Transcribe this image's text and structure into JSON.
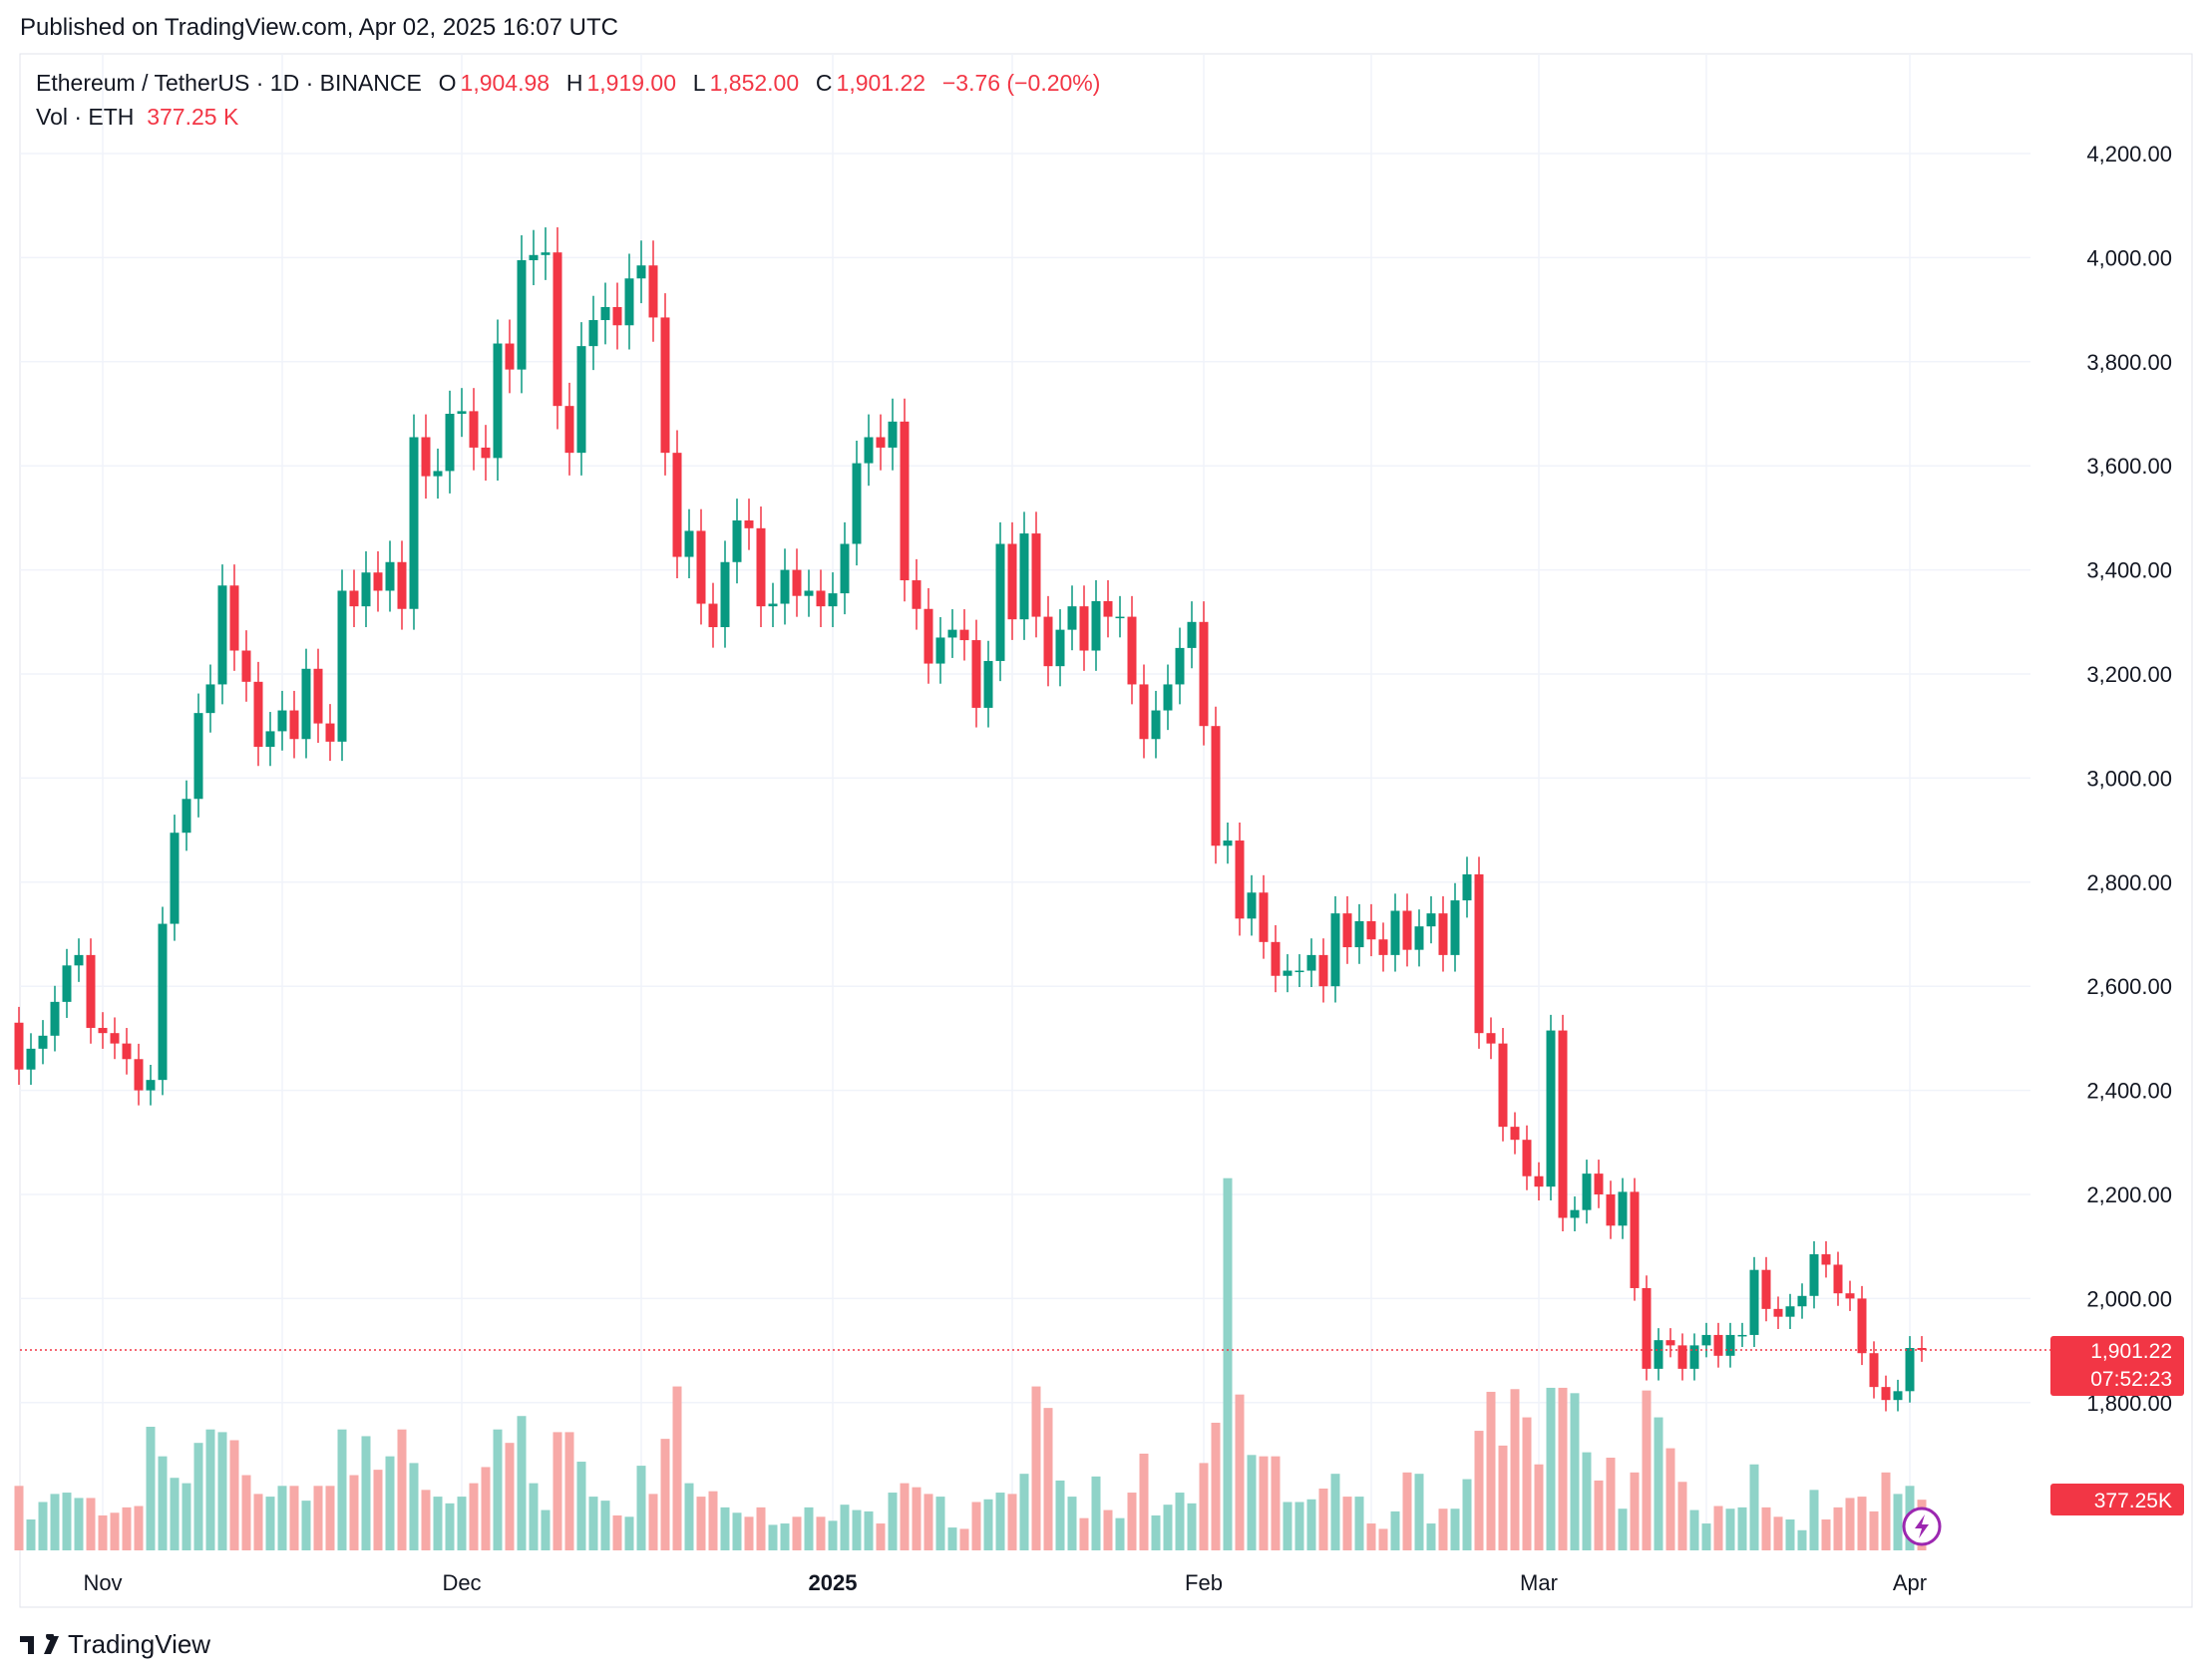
{
  "published": "Published on TradingView.com, Apr 02, 2025 16:07 UTC",
  "legend": {
    "symbol": "Ethereum / TetherUS · 1D · BINANCE",
    "o_label": "O",
    "o": "1,904.98",
    "h_label": "H",
    "h": "1,919.00",
    "l_label": "L",
    "l": "1,852.00",
    "c_label": "C",
    "c": "1,901.22",
    "change": "−3.76 (−0.20%)",
    "vol_label": "Vol · ETH",
    "vol": "377.25 K"
  },
  "last_price_label": "1,901.22",
  "countdown": "07:52:23",
  "last_volume_label": "377.25K",
  "brand": "TradingView",
  "colors": {
    "up": "#089981",
    "down": "#f23645",
    "up_vol": "#8fd3c8",
    "down_vol": "#f7a9a7"
  },
  "chart_data": {
    "type": "candlestick",
    "interval": "1D",
    "start_date": "2024-10-25",
    "end_date": "2025-04-02",
    "ylim": [
      1750,
      4300
    ],
    "grid": true,
    "y_ticks": [
      "1,800.00",
      "2,000.00",
      "2,200.00",
      "2,400.00",
      "2,600.00",
      "2,800.00",
      "3,000.00",
      "3,200.00",
      "3,400.00",
      "3,600.00",
      "3,800.00",
      "4,000.00",
      "4,200.00"
    ],
    "y_tick_values": [
      1800,
      2000,
      2200,
      2400,
      2600,
      2800,
      3000,
      3200,
      3400,
      3600,
      3800,
      4000,
      4200
    ],
    "x_ticks": [
      {
        "label": "Nov",
        "index": 7,
        "bold": false
      },
      {
        "label": "Dec",
        "index": 37,
        "bold": false
      },
      {
        "label": "2025",
        "index": 68,
        "bold": true
      },
      {
        "label": "Feb",
        "index": 99,
        "bold": false
      },
      {
        "label": "Mar",
        "index": 127,
        "bold": false
      },
      {
        "label": "Apr",
        "index": 158,
        "bold": false
      }
    ],
    "first_open": 2530,
    "close": [
      2440,
      2480,
      2505,
      2570,
      2640,
      2660,
      2520,
      2510,
      2490,
      2460,
      2400,
      2420,
      2720,
      2895,
      2960,
      3125,
      3180,
      3370,
      3245,
      3185,
      3060,
      3090,
      3130,
      3075,
      3210,
      3105,
      3070,
      3360,
      3330,
      3395,
      3360,
      3415,
      3325,
      3655,
      3580,
      3590,
      3700,
      3705,
      3635,
      3615,
      3835,
      3785,
      3995,
      4005,
      4010,
      3715,
      3625,
      3830,
      3880,
      3905,
      3870,
      3960,
      3985,
      3885,
      3625,
      3425,
      3475,
      3335,
      3290,
      3415,
      3495,
      3480,
      3330,
      3335,
      3400,
      3350,
      3360,
      3330,
      3355,
      3450,
      3605,
      3655,
      3635,
      3685,
      3380,
      3325,
      3220,
      3270,
      3285,
      3265,
      3135,
      3225,
      3450,
      3305,
      3470,
      3310,
      3215,
      3285,
      3330,
      3245,
      3340,
      3310,
      3310,
      3180,
      3075,
      3130,
      3180,
      3250,
      3300,
      3100,
      2870,
      2880,
      2730,
      2780,
      2685,
      2620,
      2630,
      2630,
      2660,
      2600,
      2740,
      2675,
      2725,
      2690,
      2660,
      2745,
      2670,
      2715,
      2740,
      2660,
      2765,
      2815,
      2510,
      2490,
      2330,
      2305,
      2235,
      2215,
      2515,
      2155,
      2170,
      2240,
      2200,
      2140,
      2205,
      2020,
      1865,
      1920,
      1910,
      1865,
      1910,
      1930,
      1890,
      1930,
      1930,
      2055,
      1980,
      1965,
      1985,
      2005,
      2085,
      2065,
      2010,
      2000,
      1895,
      1830,
      1805,
      1822,
      1904.98,
      1901.22
    ],
    "volume_k": [
      480,
      230,
      360,
      420,
      430,
      390,
      390,
      260,
      280,
      320,
      330,
      920,
      700,
      540,
      500,
      800,
      900,
      880,
      820,
      560,
      420,
      400,
      480,
      480,
      370,
      480,
      480,
      900,
      560,
      850,
      600,
      700,
      900,
      650,
      450,
      400,
      350,
      400,
      500,
      620,
      900,
      800,
      1000,
      500,
      300,
      880,
      880,
      660,
      400,
      370,
      260,
      250,
      630,
      420,
      830,
      1220,
      500,
      400,
      440,
      320,
      280,
      250,
      320,
      190,
      200,
      250,
      320,
      250,
      220,
      340,
      300,
      290,
      200,
      430,
      500,
      470,
      420,
      400,
      170,
      160,
      360,
      380,
      430,
      420,
      570,
      1220,
      1060,
      520,
      400,
      240,
      550,
      300,
      240,
      430,
      720,
      260,
      340,
      430,
      350,
      650,
      950,
      2770,
      1160,
      710,
      700,
      700,
      360,
      360,
      380,
      460,
      570,
      400,
      400,
      200,
      160,
      290,
      580,
      570,
      200,
      310,
      310,
      530,
      890,
      1180,
      780,
      1200,
      990,
      640,
      1210,
      1210,
      1170,
      730,
      520,
      690,
      310,
      580,
      1190,
      990,
      760,
      510,
      300,
      200,
      330,
      310,
      320,
      640,
      320,
      250,
      230,
      150,
      450,
      230,
      320,
      390,
      400,
      290,
      580,
      420,
      480,
      377.25
    ],
    "last_price": 1901.22
  }
}
